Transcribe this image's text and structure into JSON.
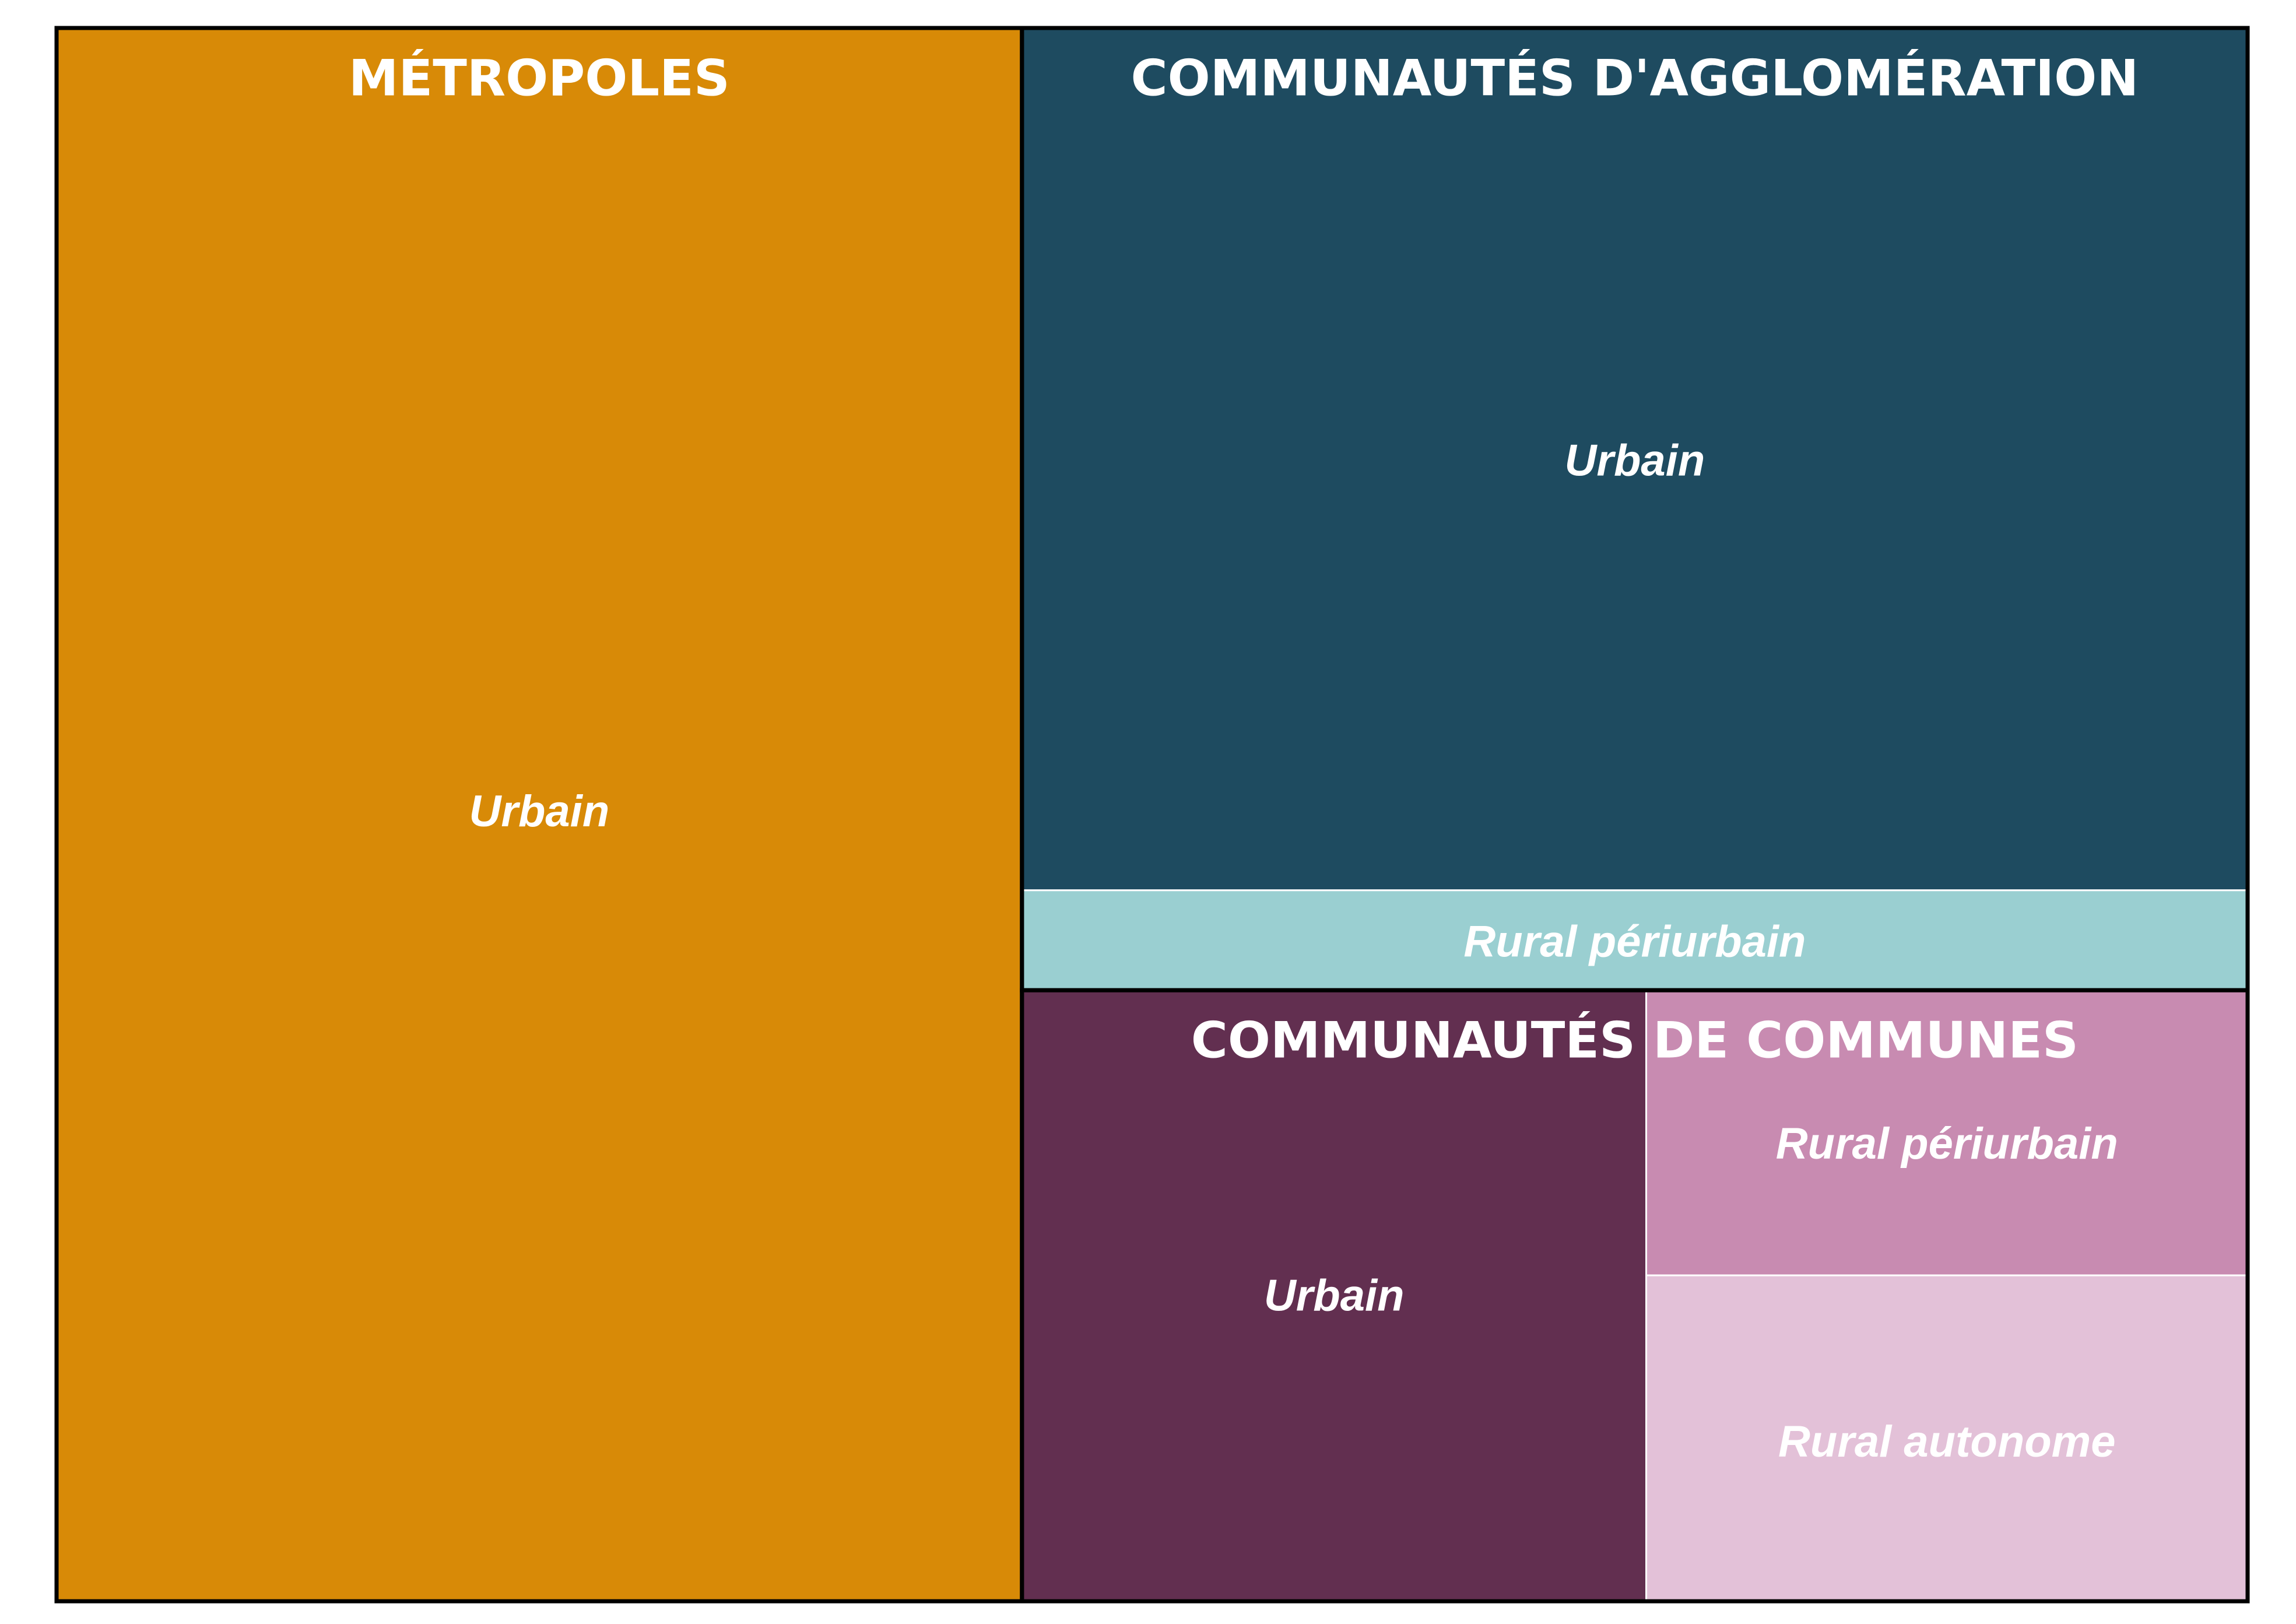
{
  "chart_data": {
    "type": "treemap",
    "groups": [
      {
        "name": "MÉTROPOLES",
        "color": "#D88A07",
        "leaves": [
          {
            "label": "Urbain",
            "value": 43.4,
            "color": "#D88A07"
          }
        ]
      },
      {
        "name": "COMMUNAUTÉS D'AGGLOMÉRATION",
        "color": "#1E4B60",
        "leaves": [
          {
            "label": "Urbain",
            "value": 30.2,
            "color": "#1E4B60"
          },
          {
            "label": "Rural périurbain",
            "value": 3.5,
            "color": "#9ACFD1"
          }
        ]
      },
      {
        "name": "COMMUNAUTÉS DE COMMUNES",
        "color": "#622F50",
        "leaves": [
          {
            "label": "Urbain",
            "value": 10.9,
            "color": "#622F50"
          },
          {
            "label": "Rural périurbain",
            "value": 4.9,
            "color": "#C88BB1"
          },
          {
            "label": "Rural autonome",
            "value": 5.6,
            "color": "#E3C1D8"
          }
        ]
      }
    ]
  }
}
